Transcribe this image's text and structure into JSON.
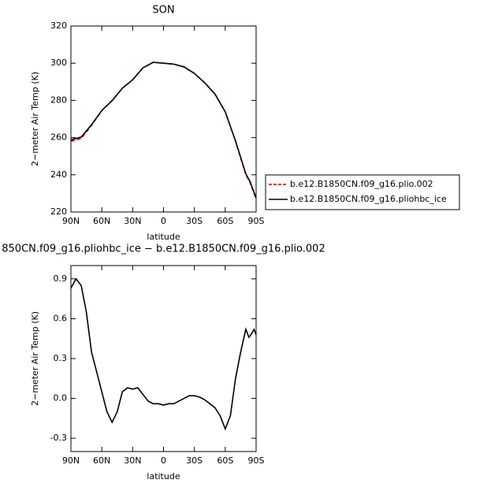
{
  "chart_data": [
    {
      "type": "line",
      "title": "SON",
      "x_label": "latitude",
      "y_label": "2−meter Air Temp (K)",
      "x": [
        90,
        80,
        70,
        60,
        50,
        40,
        30,
        20,
        10,
        0,
        -10,
        -20,
        -30,
        -40,
        -50,
        -60,
        -70,
        -80,
        -84,
        -90
      ],
      "series": [
        {
          "name": "b.e12.B1850CN.f09_g16.plio.002",
          "color": "#cc0000",
          "dash": true,
          "values": [
            258,
            259.5,
            266.5,
            274.5,
            280,
            286.5,
            291,
            297.5,
            300.5,
            300,
            299.5,
            298,
            294.5,
            289.5,
            283.5,
            274,
            258,
            240,
            236,
            227
          ]
        },
        {
          "name": "b.e12.B1850CN.f09_g16.pliohbc_ice",
          "color": "#000000",
          "dash": false,
          "values": [
            258.8,
            260.3,
            266.9,
            274.6,
            279.8,
            286.6,
            291.1,
            297.5,
            300.5,
            300,
            299.5,
            298,
            294.5,
            289.5,
            283.4,
            273.8,
            258.2,
            240.5,
            236.5,
            227.5
          ]
        }
      ],
      "xlim": [
        90,
        -90
      ],
      "xticks": [
        {
          "value": 90,
          "label": "90N"
        },
        {
          "value": 60,
          "label": "60N"
        },
        {
          "value": 30,
          "label": "30N"
        },
        0,
        {
          "value": -30,
          "label": "30S"
        },
        {
          "value": -60,
          "label": "60S"
        },
        {
          "value": -90,
          "label": "90S"
        }
      ],
      "ylim": [
        220,
        320
      ],
      "yticks": [
        220,
        240,
        260,
        280,
        300,
        320
      ],
      "legend": "right"
    },
    {
      "type": "line",
      "title": "850CN.f09_g16.pliohbc_ice − b.e12.B1850CN.f09_g16.plio.002",
      "x_label": "latitude",
      "y_label": "2−meter Air Temp (K)",
      "x": [
        90,
        85,
        80,
        75,
        70,
        65,
        60,
        55,
        50,
        45,
        40,
        35,
        30,
        25,
        20,
        15,
        10,
        5,
        0,
        -5,
        -10,
        -15,
        -20,
        -25,
        -30,
        -35,
        -40,
        -45,
        -50,
        -55,
        -60,
        -65,
        -70,
        -75,
        -80,
        -83,
        -85,
        -88,
        -90
      ],
      "series": [
        {
          "color": "#000000",
          "dash": false,
          "values": [
            0.83,
            0.9,
            0.85,
            0.65,
            0.35,
            0.2,
            0.05,
            -0.1,
            -0.18,
            -0.1,
            0.05,
            0.08,
            0.07,
            0.08,
            0.03,
            -0.02,
            -0.04,
            -0.04,
            -0.05,
            -0.04,
            -0.04,
            -0.02,
            0.0,
            0.02,
            0.02,
            0.01,
            -0.01,
            -0.04,
            -0.07,
            -0.13,
            -0.23,
            -0.13,
            0.15,
            0.35,
            0.52,
            0.46,
            0.48,
            0.52,
            0.48
          ]
        }
      ],
      "xlim": [
        90,
        -90
      ],
      "xticks": [
        {
          "value": 90,
          "label": "90N"
        },
        {
          "value": 60,
          "label": "60N"
        },
        {
          "value": 30,
          "label": "30N"
        },
        0,
        {
          "value": -30,
          "label": "30S"
        },
        {
          "value": -60,
          "label": "60S"
        },
        {
          "value": -90,
          "label": "90S"
        }
      ],
      "ylim": [
        -0.4,
        1.0
      ],
      "yticks": [
        -0.3,
        {
          "value": 0,
          "label": "0.0"
        },
        0.3,
        0.6,
        0.9
      ]
    }
  ]
}
